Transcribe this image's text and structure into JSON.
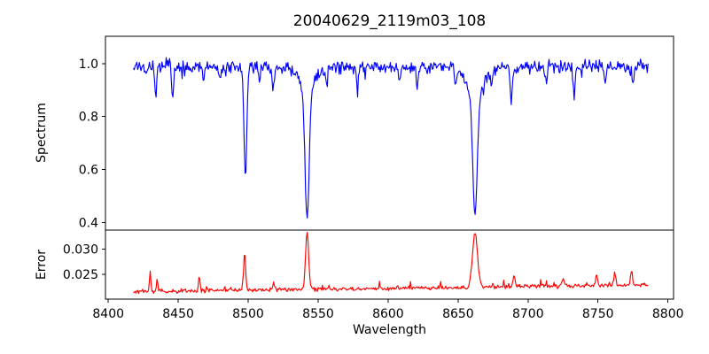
{
  "chart_data": {
    "type": "line",
    "title": "20040629_2119m03_108",
    "xlabel": "Wavelength",
    "xlim": [
      8398,
      8804
    ],
    "x_ticks": [
      8400,
      8450,
      8500,
      8550,
      8600,
      8650,
      8700,
      8750,
      8800
    ],
    "x_data_range": [
      8418,
      8786
    ],
    "sample_step": 0.6,
    "colors": {
      "axis": "#000000",
      "background": "#ffffff",
      "text": "#000000"
    },
    "panels": [
      {
        "name": "spectrum",
        "ylabel": "Spectrum",
        "line_color": "#0000ff",
        "ylim": [
          0.371,
          1.103
        ],
        "y_ticks": [
          {
            "value": 1.0,
            "label": "1.0"
          },
          {
            "value": 0.8,
            "label": "0.8"
          },
          {
            "value": 0.6,
            "label": "0.6"
          },
          {
            "value": 0.4,
            "label": "0.4"
          }
        ],
        "continuum": 0.988,
        "noise_amplitude": 0.03,
        "absorption_lines": [
          {
            "center": 8434,
            "depth": 0.1,
            "sigma": 0.7
          },
          {
            "center": 8446,
            "depth": 0.115,
            "sigma": 0.7
          },
          {
            "center": 8468,
            "depth": 0.05,
            "sigma": 0.6
          },
          {
            "center": 8480,
            "depth": 0.05,
            "sigma": 0.6
          },
          {
            "center": 8498,
            "depth": 0.42,
            "sigma": 1.0
          },
          {
            "center": 8508,
            "depth": 0.055,
            "sigma": 0.6
          },
          {
            "center": 8518,
            "depth": 0.085,
            "sigma": 0.7
          },
          {
            "center": 8542.1,
            "depth": 0.48,
            "sigma": 1.4
          },
          {
            "center": 8542.1,
            "depth": 0.1,
            "sigma": 5.0
          },
          {
            "center": 8556,
            "depth": 0.06,
            "sigma": 0.6
          },
          {
            "center": 8578,
            "depth": 0.075,
            "sigma": 0.7
          },
          {
            "center": 8608,
            "depth": 0.06,
            "sigma": 0.6
          },
          {
            "center": 8621,
            "depth": 0.065,
            "sigma": 0.7
          },
          {
            "center": 8648,
            "depth": 0.06,
            "sigma": 0.6
          },
          {
            "center": 8662.1,
            "depth": 0.45,
            "sigma": 1.6
          },
          {
            "center": 8662.1,
            "depth": 0.11,
            "sigma": 6.0
          },
          {
            "center": 8674,
            "depth": 0.055,
            "sigma": 0.6
          },
          {
            "center": 8688,
            "depth": 0.135,
            "sigma": 0.8
          },
          {
            "center": 8713,
            "depth": 0.055,
            "sigma": 0.6
          },
          {
            "center": 8733,
            "depth": 0.11,
            "sigma": 0.7
          },
          {
            "center": 8755,
            "depth": 0.075,
            "sigma": 0.7
          },
          {
            "center": 8775,
            "depth": 0.06,
            "sigma": 0.6
          }
        ]
      },
      {
        "name": "error",
        "ylabel": "Error",
        "line_color": "#ff0000",
        "ylim": [
          0.0201,
          0.0338
        ],
        "y_ticks": [
          {
            "value": 0.03,
            "label": "0.030"
          },
          {
            "value": 0.025,
            "label": "0.025"
          }
        ],
        "baseline_start": 0.0216,
        "baseline_end": 0.0229,
        "noise_amplitude": 0.0005,
        "error_peaks": [
          {
            "center": 8430,
            "height": 0.004,
            "sigma": 0.5
          },
          {
            "center": 8435,
            "height": 0.002,
            "sigma": 0.5
          },
          {
            "center": 8465,
            "height": 0.0029,
            "sigma": 0.6
          },
          {
            "center": 8497.5,
            "height": 0.0076,
            "sigma": 0.7
          },
          {
            "center": 8518,
            "height": 0.0012,
            "sigma": 0.7
          },
          {
            "center": 8542.1,
            "height": 0.0113,
            "sigma": 1.1
          },
          {
            "center": 8662.1,
            "height": 0.0106,
            "sigma": 1.8
          },
          {
            "center": 8690,
            "height": 0.0022,
            "sigma": 0.8
          },
          {
            "center": 8725,
            "height": 0.0016,
            "sigma": 0.7
          },
          {
            "center": 8749,
            "height": 0.0022,
            "sigma": 0.7
          },
          {
            "center": 8762,
            "height": 0.0026,
            "sigma": 0.7
          },
          {
            "center": 8774,
            "height": 0.0027,
            "sigma": 0.7
          }
        ]
      }
    ]
  }
}
